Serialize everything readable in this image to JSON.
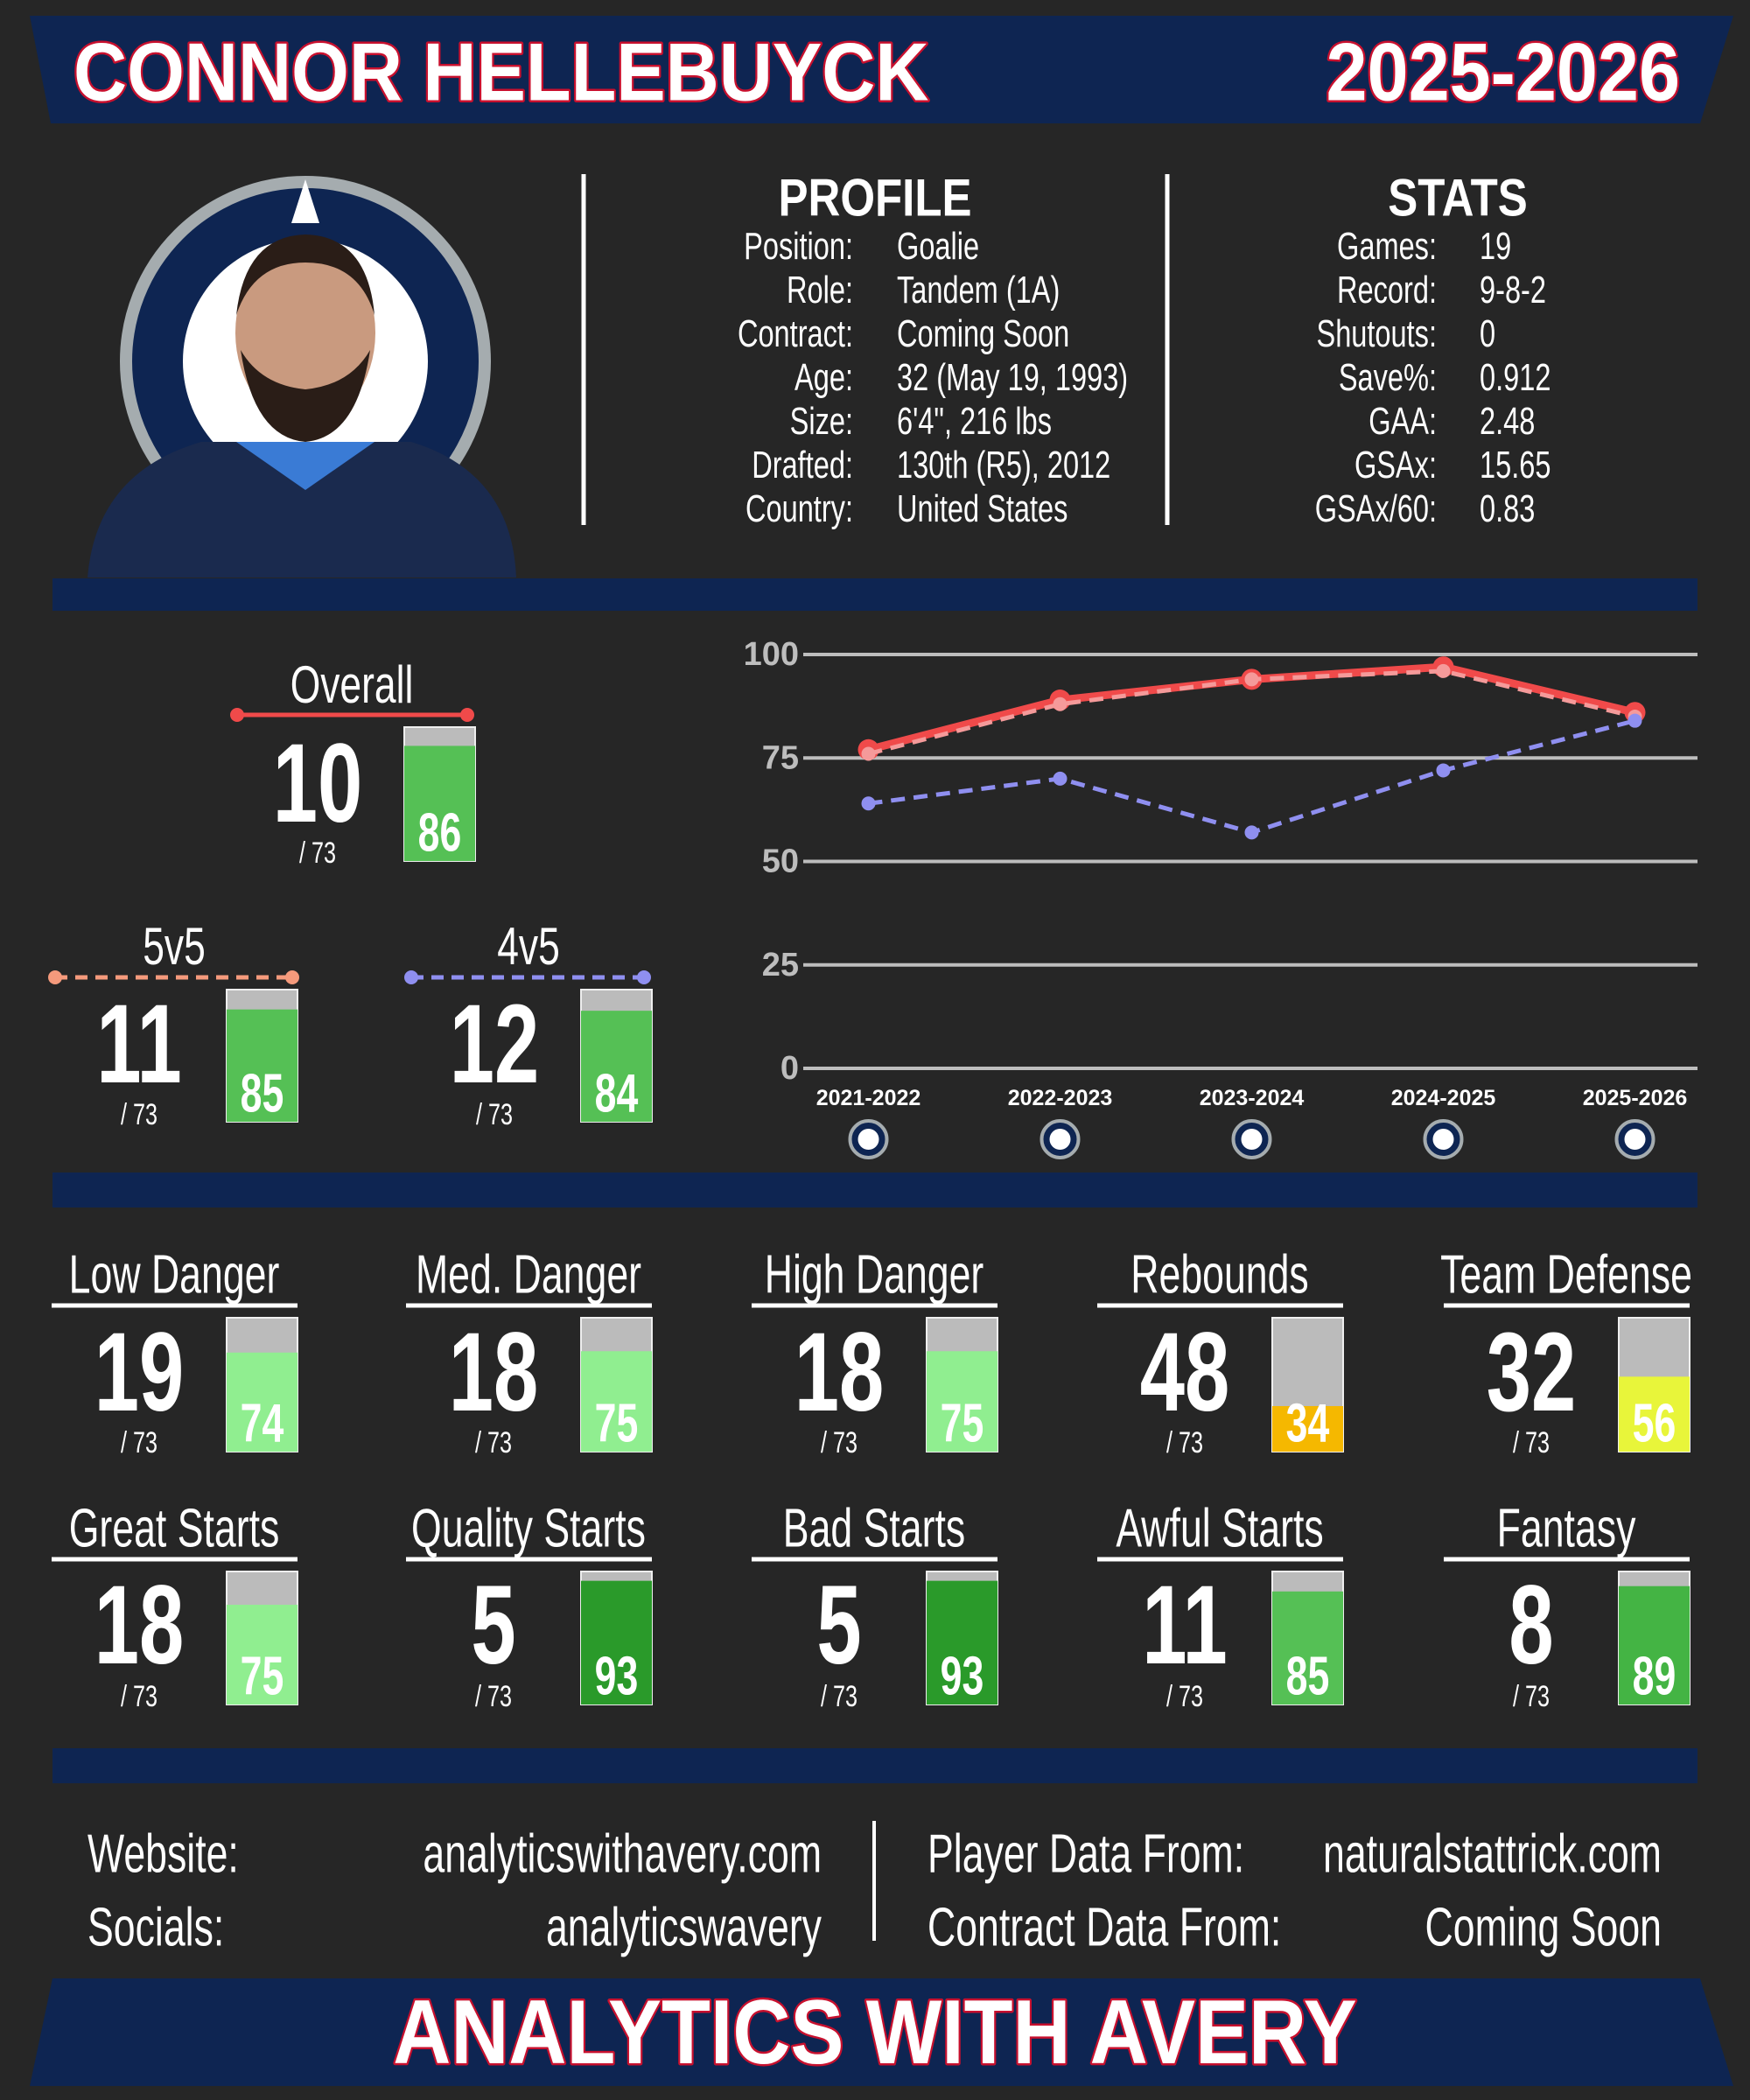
{
  "header": {
    "name": "CONNOR HELLEBUYCK",
    "season": "2025-2026"
  },
  "profile": {
    "title": "PROFILE",
    "rows": [
      [
        "Position:",
        "Goalie"
      ],
      [
        "Role:",
        "Tandem (1A)"
      ],
      [
        "Contract:",
        "Coming Soon"
      ],
      [
        "Age:",
        "32 (May 19, 1993)"
      ],
      [
        "Size:",
        "6'4\", 216 lbs"
      ],
      [
        "Drafted:",
        "130th (R5), 2012"
      ],
      [
        "Country:",
        "United States"
      ]
    ]
  },
  "stats": {
    "title": "STATS",
    "rows": [
      [
        "Games:",
        "19"
      ],
      [
        "Record:",
        "9-8-2"
      ],
      [
        "Shutouts:",
        "0"
      ],
      [
        "Save%:",
        "0.912"
      ],
      [
        "GAA:",
        "2.48"
      ],
      [
        "GSAx:",
        "15.65"
      ],
      [
        "GSAx/60:",
        "0.83"
      ]
    ]
  },
  "ratings": [
    {
      "label": "Overall",
      "rank": 10,
      "total": "/ 73",
      "score": 86,
      "color": "#f04a4a",
      "bar_color": "#55c055",
      "dashed": false
    },
    {
      "label": "5v5",
      "rank": 11,
      "total": "/ 73",
      "score": 85,
      "color": "#f59a7c",
      "bar_color": "#55c055",
      "dashed": true
    },
    {
      "label": "4v5",
      "rank": 12,
      "total": "/ 73",
      "score": 84,
      "color": "#8f8ff0",
      "bar_color": "#55c055",
      "dashed": true
    }
  ],
  "chart_data": {
    "type": "line",
    "categories": [
      "2021-2022",
      "2022-2023",
      "2023-2024",
      "2024-2025",
      "2025-2026"
    ],
    "series": [
      {
        "color": "#f04a4a",
        "values": [
          77,
          89,
          94,
          97,
          86
        ],
        "dashed": false
      },
      {
        "color": "#f59a9a",
        "values": [
          76,
          88,
          94,
          96,
          85
        ],
        "dashed": true
      },
      {
        "color": "#8f8ff0",
        "values": [
          64,
          70,
          57,
          72,
          84
        ],
        "dashed": true
      }
    ],
    "ylim": [
      0,
      100
    ],
    "yticks": [
      0,
      25,
      50,
      75,
      100
    ],
    "grid": true
  },
  "metrics": [
    [
      {
        "label": "Low Danger",
        "rank": 19,
        "total": "/ 73",
        "score": 74,
        "color": "#90ee90"
      },
      {
        "label": "Med. Danger",
        "rank": 18,
        "total": "/ 73",
        "score": 75,
        "color": "#90ee90"
      },
      {
        "label": "High Danger",
        "rank": 18,
        "total": "/ 73",
        "score": 75,
        "color": "#90ee90"
      },
      {
        "label": "Rebounds",
        "rank": 48,
        "total": "/ 73",
        "score": 34,
        "color": "#f5b800"
      },
      {
        "label": "Team Defense",
        "rank": 32,
        "total": "/ 73",
        "score": 56,
        "color": "#e8f53a"
      }
    ],
    [
      {
        "label": "Great Starts",
        "rank": 18,
        "total": "/ 73",
        "score": 75,
        "color": "#90ee90"
      },
      {
        "label": "Quality Starts",
        "rank": 5,
        "total": "/ 73",
        "score": 93,
        "color": "#2a9a2a"
      },
      {
        "label": "Bad Starts",
        "rank": 5,
        "total": "/ 73",
        "score": 93,
        "color": "#2a9a2a"
      },
      {
        "label": "Awful Starts",
        "rank": 11,
        "total": "/ 73",
        "score": 85,
        "color": "#55c055"
      },
      {
        "label": "Fantasy",
        "rank": 8,
        "total": "/ 73",
        "score": 89,
        "color": "#44b444"
      }
    ]
  ],
  "footer": {
    "left": [
      [
        "Website:",
        "analyticswithavery.com"
      ],
      [
        "Socials:",
        "analyticswavery"
      ]
    ],
    "right": [
      [
        "Player Data From:",
        "naturalstattrick.com"
      ],
      [
        "Contract Data From:",
        "Coming Soon"
      ]
    ],
    "brand": "ANALYTICS WITH AVERY"
  }
}
